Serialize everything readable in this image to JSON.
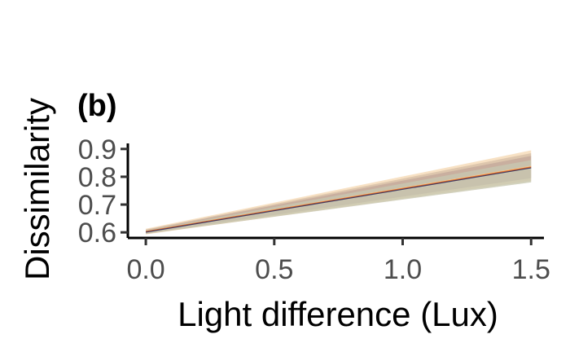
{
  "chart_data": {
    "type": "line",
    "panel_label": "(b)",
    "xlabel": "Light difference (Lux)",
    "ylabel": "Dissimilarity",
    "xlim": [
      -0.07,
      1.55
    ],
    "ylim": [
      0.58,
      0.92
    ],
    "x_ticks": [
      0.0,
      0.5,
      1.0,
      1.5
    ],
    "x_tick_labels": [
      "0.0",
      "0.5",
      "1.0",
      "1.5"
    ],
    "y_ticks": [
      0.6,
      0.7,
      0.8,
      0.9
    ],
    "y_tick_labels": [
      "0.6",
      "0.7",
      "0.8",
      "0.9"
    ],
    "grid": false,
    "legend": "none",
    "series": [
      {
        "color": "#f0c894",
        "x": [
          0.0,
          1.5
        ],
        "y": [
          0.603,
          0.838
        ],
        "band_lower": [
          0.593,
          0.785
        ],
        "band_upper": [
          0.613,
          0.895
        ]
      },
      {
        "color": "#c9b09a",
        "x": [
          0.0,
          1.5
        ],
        "y": [
          0.602,
          0.835
        ],
        "band_lower": [
          0.594,
          0.78
        ],
        "band_upper": [
          0.61,
          0.885
        ]
      },
      {
        "color": "#b89c94",
        "x": [
          0.0,
          1.5
        ],
        "y": [
          0.602,
          0.834
        ],
        "band_lower": [
          0.596,
          0.795
        ],
        "band_upper": [
          0.608,
          0.875
        ]
      },
      {
        "color": "#c7d1b8",
        "x": [
          0.0,
          1.5
        ],
        "y": [
          0.601,
          0.83
        ],
        "band_lower": [
          0.595,
          0.78
        ],
        "band_upper": [
          0.607,
          0.86
        ]
      },
      {
        "color": "#e8742a",
        "x": [
          0.0,
          1.5
        ],
        "y": [
          0.603,
          0.835
        ]
      },
      {
        "color": "#4a3a5e",
        "x": [
          0.0,
          1.5
        ],
        "y": [
          0.601,
          0.832
        ]
      }
    ]
  }
}
